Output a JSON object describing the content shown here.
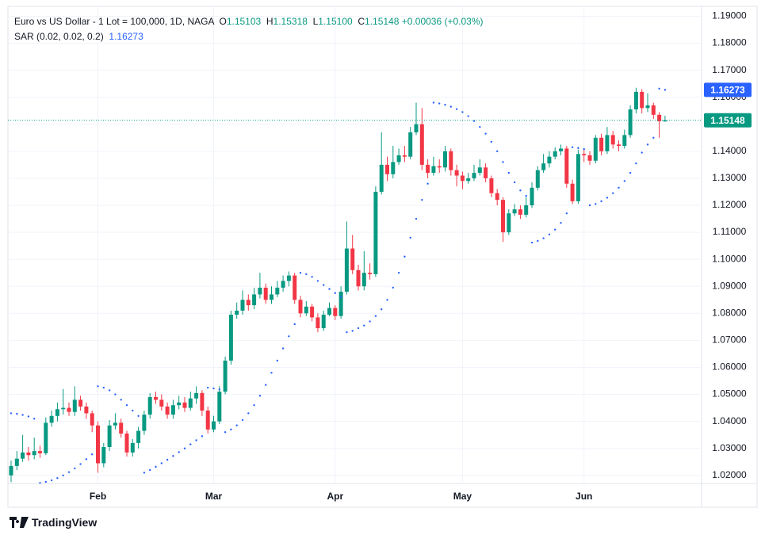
{
  "chart_data": {
    "type": "candlestick",
    "title": "Euro vs US Dollar - 1 Lot = 100,000, 1D, NAGA",
    "legend": {
      "open_label": "O",
      "open": "1.15103",
      "high_label": "H",
      "high": "1.15318",
      "low_label": "L",
      "low": "1.15100",
      "close_label": "C",
      "close": "1.15148",
      "change": "+0.00036 (+0.03%)"
    },
    "categories": [
      null,
      null,
      null,
      null,
      null,
      null,
      null,
      null,
      null,
      null,
      null,
      null,
      null,
      null,
      null,
      "Feb",
      null,
      null,
      null,
      null,
      null,
      null,
      null,
      null,
      null,
      null,
      null,
      null,
      null,
      null,
      null,
      null,
      null,
      null,
      null,
      "Mar",
      null,
      null,
      null,
      null,
      null,
      null,
      null,
      null,
      null,
      null,
      null,
      null,
      null,
      null,
      null,
      null,
      null,
      null,
      null,
      null,
      "Apr",
      null,
      null,
      null,
      null,
      null,
      null,
      null,
      null,
      null,
      null,
      null,
      null,
      null,
      null,
      null,
      null,
      null,
      null,
      null,
      null,
      null,
      "May",
      null,
      null,
      null,
      null,
      null,
      null,
      null,
      null,
      null,
      null,
      null,
      null,
      null,
      null,
      null,
      null,
      null,
      null,
      null,
      null,
      "Jun",
      null,
      null,
      null,
      null,
      null,
      null,
      null,
      null,
      null,
      null,
      null,
      null,
      null,
      null
    ],
    "open": [
      1.02,
      1.0235,
      1.0262,
      1.0285,
      1.0275,
      1.029,
      1.0282,
      1.0395,
      1.042,
      1.0445,
      1.045,
      1.0435,
      1.048,
      1.0455,
      1.043,
      1.0385,
      1.0245,
      1.0305,
      1.0385,
      1.0395,
      1.0355,
      1.0285,
      1.032,
      1.0365,
      1.0425,
      1.049,
      1.048,
      1.0455,
      1.0425,
      1.046,
      1.047,
      1.045,
      1.0485,
      1.0505,
      1.044,
      1.037,
      1.04,
      1.051,
      1.0625,
      1.0795,
      1.081,
      1.085,
      1.083,
      1.087,
      1.0895,
      1.085,
      1.087,
      1.0895,
      1.092,
      1.094,
      1.085,
      1.08,
      1.0825,
      1.0785,
      1.0745,
      1.0795,
      1.082,
      1.079,
      1.088,
      1.104,
      1.096,
      1.09,
      1.095,
      1.0945,
      1.125,
      1.135,
      1.1315,
      1.136,
      1.1385,
      1.138,
      1.147,
      1.15,
      1.135,
      1.132,
      1.1345,
      1.134,
      1.14,
      1.133,
      1.131,
      1.129,
      1.13,
      1.132,
      1.134,
      1.13,
      1.1245,
      1.122,
      1.11,
      1.117,
      1.1185,
      1.1165,
      1.12,
      1.1265,
      1.133,
      1.1355,
      1.138,
      1.14,
      1.141,
      1.128,
      1.1215,
      1.139,
      1.1385,
      1.1365,
      1.145,
      1.14,
      1.146,
      1.1425,
      1.142,
      1.146,
      1.1555,
      1.162,
      1.156,
      1.157,
      1.1535,
      1.15103
    ],
    "high": [
      1.0255,
      1.029,
      1.035,
      1.0305,
      1.034,
      1.031,
      1.0415,
      1.044,
      1.047,
      1.052,
      1.047,
      1.053,
      1.0495,
      1.047,
      1.044,
      1.04,
      1.032,
      1.0405,
      1.043,
      1.041,
      1.0365,
      1.0335,
      1.038,
      1.044,
      1.0505,
      1.051,
      1.05,
      1.047,
      1.048,
      1.0495,
      1.049,
      1.051,
      1.053,
      1.0515,
      1.0455,
      1.042,
      1.053,
      1.064,
      1.081,
      1.084,
      1.0885,
      1.087,
      1.0895,
      1.095,
      1.091,
      1.09,
      1.092,
      1.094,
      1.0955,
      1.095,
      1.0865,
      1.0845,
      1.0835,
      1.08,
      1.081,
      1.084,
      1.083,
      1.09,
      1.114,
      1.109,
      1.098,
      1.103,
      1.0985,
      1.127,
      1.147,
      1.138,
      1.142,
      1.141,
      1.142,
      1.149,
      1.158,
      1.156,
      1.137,
      1.138,
      1.137,
      1.142,
      1.141,
      1.135,
      1.1325,
      1.132,
      1.135,
      1.137,
      1.1355,
      1.131,
      1.126,
      1.123,
      1.1185,
      1.1205,
      1.12,
      1.123,
      1.1285,
      1.1345,
      1.139,
      1.14,
      1.1415,
      1.1425,
      1.142,
      1.1295,
      1.1405,
      1.141,
      1.14,
      1.146,
      1.1465,
      1.149,
      1.1475,
      1.144,
      1.148,
      1.157,
      1.1635,
      1.163,
      1.1615,
      1.158,
      1.1545,
      1.15318
    ],
    "low": [
      1.0175,
      1.022,
      1.025,
      1.0255,
      1.026,
      1.0265,
      1.0275,
      1.038,
      1.04,
      1.0425,
      1.042,
      1.042,
      1.044,
      1.041,
      1.036,
      1.021,
      1.023,
      1.029,
      1.037,
      1.034,
      1.027,
      1.027,
      1.03,
      1.035,
      1.041,
      1.0465,
      1.044,
      1.041,
      1.041,
      1.0445,
      1.0435,
      1.044,
      1.0465,
      1.042,
      1.0355,
      1.036,
      1.039,
      1.05,
      1.061,
      1.078,
      1.0795,
      1.081,
      1.0815,
      1.0855,
      1.0835,
      1.0835,
      1.086,
      1.088,
      1.09,
      1.0835,
      1.0785,
      1.079,
      1.077,
      1.073,
      1.0735,
      1.079,
      1.0775,
      1.078,
      1.087,
      1.0945,
      1.0885,
      1.0885,
      1.0925,
      1.0935,
      1.124,
      1.129,
      1.13,
      1.135,
      1.136,
      1.137,
      1.146,
      1.133,
      1.13,
      1.131,
      1.132,
      1.1325,
      1.131,
      1.127,
      1.126,
      1.128,
      1.129,
      1.131,
      1.1285,
      1.123,
      1.12,
      1.1065,
      1.109,
      1.116,
      1.115,
      1.1155,
      1.119,
      1.1255,
      1.132,
      1.134,
      1.137,
      1.1385,
      1.1265,
      1.1205,
      1.1205,
      1.136,
      1.135,
      1.1355,
      1.1385,
      1.139,
      1.141,
      1.14,
      1.141,
      1.145,
      1.154,
      1.154,
      1.1545,
      1.152,
      1.145,
      1.151
    ],
    "close": [
      1.0235,
      1.0262,
      1.0285,
      1.0275,
      1.029,
      1.0282,
      1.0395,
      1.042,
      1.0445,
      1.045,
      1.0435,
      1.048,
      1.0455,
      1.043,
      1.0385,
      1.0245,
      1.0305,
      1.0385,
      1.0395,
      1.0355,
      1.0285,
      1.032,
      1.0365,
      1.0425,
      1.049,
      1.048,
      1.0455,
      1.0425,
      1.046,
      1.047,
      1.045,
      1.0485,
      1.0505,
      1.044,
      1.037,
      1.04,
      1.051,
      1.0625,
      1.0795,
      1.081,
      1.085,
      1.083,
      1.087,
      1.0895,
      1.085,
      1.087,
      1.0895,
      1.092,
      1.094,
      1.085,
      1.08,
      1.0825,
      1.0785,
      1.0745,
      1.0795,
      1.082,
      1.079,
      1.088,
      1.104,
      1.096,
      1.09,
      1.095,
      1.0945,
      1.125,
      1.135,
      1.1315,
      1.136,
      1.1385,
      1.138,
      1.147,
      1.15,
      1.135,
      1.132,
      1.1345,
      1.134,
      1.14,
      1.133,
      1.131,
      1.129,
      1.13,
      1.132,
      1.134,
      1.13,
      1.1245,
      1.122,
      1.11,
      1.117,
      1.1185,
      1.1165,
      1.12,
      1.1265,
      1.133,
      1.1355,
      1.138,
      1.14,
      1.141,
      1.128,
      1.1215,
      1.139,
      1.1385,
      1.1365,
      1.145,
      1.14,
      1.146,
      1.1425,
      1.142,
      1.146,
      1.1555,
      1.162,
      1.156,
      1.157,
      1.1535,
      1.15112,
      1.15148
    ],
    "up_color": "#089981",
    "down_color": "#f23645",
    "indicator": {
      "name": "SAR (0.02, 0.02, 0.2)",
      "color": "#2962ff",
      "values": [
        1.043,
        1.0428,
        1.0424,
        1.0418,
        1.041,
        1.0172,
        1.0176,
        1.0182,
        1.019,
        1.02,
        1.0212,
        1.0226,
        1.0242,
        1.026,
        1.0278,
        1.053,
        1.0525,
        1.0515,
        1.05,
        1.048,
        1.046,
        1.044,
        1.042,
        1.021,
        1.022,
        1.0232,
        1.0245,
        1.0258,
        1.0272,
        1.0286,
        1.03,
        1.0315,
        1.033,
        1.0345,
        1.0525,
        1.0522,
        1.0518,
        1.036,
        1.037,
        1.0385,
        1.0405,
        1.043,
        1.046,
        1.0495,
        1.0535,
        1.058,
        1.0625,
        1.067,
        1.0715,
        1.076,
        1.095,
        1.0945,
        1.0935,
        1.092,
        1.0905,
        1.089,
        1.0875,
        1.086,
        1.073,
        1.0735,
        1.0745,
        1.0755,
        1.077,
        1.079,
        1.0815,
        1.085,
        1.0895,
        1.095,
        1.101,
        1.108,
        1.115,
        1.122,
        1.128,
        1.158,
        1.1577,
        1.1572,
        1.1565,
        1.1556,
        1.1545,
        1.153,
        1.1512,
        1.149,
        1.1465,
        1.1435,
        1.14,
        1.136,
        1.132,
        1.1285,
        1.1255,
        1.1235,
        1.1062,
        1.1068,
        1.1078,
        1.1092,
        1.111,
        1.1135,
        1.117,
        1.1415,
        1.1412,
        1.1408,
        1.12,
        1.1205,
        1.1215,
        1.1228,
        1.1245,
        1.1265,
        1.129,
        1.132,
        1.1355,
        1.1395,
        1.1425,
        1.145,
        1.1632,
        1.16273
      ]
    },
    "ylim": [
      1.017,
      1.196
    ],
    "yticks": [
      {
        "value": 1.19,
        "label": "1.19000"
      },
      {
        "value": 1.18,
        "label": "1.18000"
      },
      {
        "value": 1.17,
        "label": "1.17000"
      },
      {
        "value": 1.16,
        "label": "1.16000"
      },
      {
        "value": 1.15,
        "label": "1.15000"
      },
      {
        "value": 1.14,
        "label": "1.14000"
      },
      {
        "value": 1.13,
        "label": "1.13000"
      },
      {
        "value": 1.12,
        "label": "1.12000"
      },
      {
        "value": 1.11,
        "label": "1.11000"
      },
      {
        "value": 1.1,
        "label": "1.10000"
      },
      {
        "value": 1.09,
        "label": "1.09000"
      },
      {
        "value": 1.08,
        "label": "1.08000"
      },
      {
        "value": 1.07,
        "label": "1.07000"
      },
      {
        "value": 1.06,
        "label": "1.06000"
      },
      {
        "value": 1.05,
        "label": "1.05000"
      },
      {
        "value": 1.04,
        "label": "1.04000"
      },
      {
        "value": 1.03,
        "label": "1.03000"
      },
      {
        "value": 1.02,
        "label": "1.02000"
      }
    ],
    "grid": true,
    "brand": "TradingView"
  }
}
